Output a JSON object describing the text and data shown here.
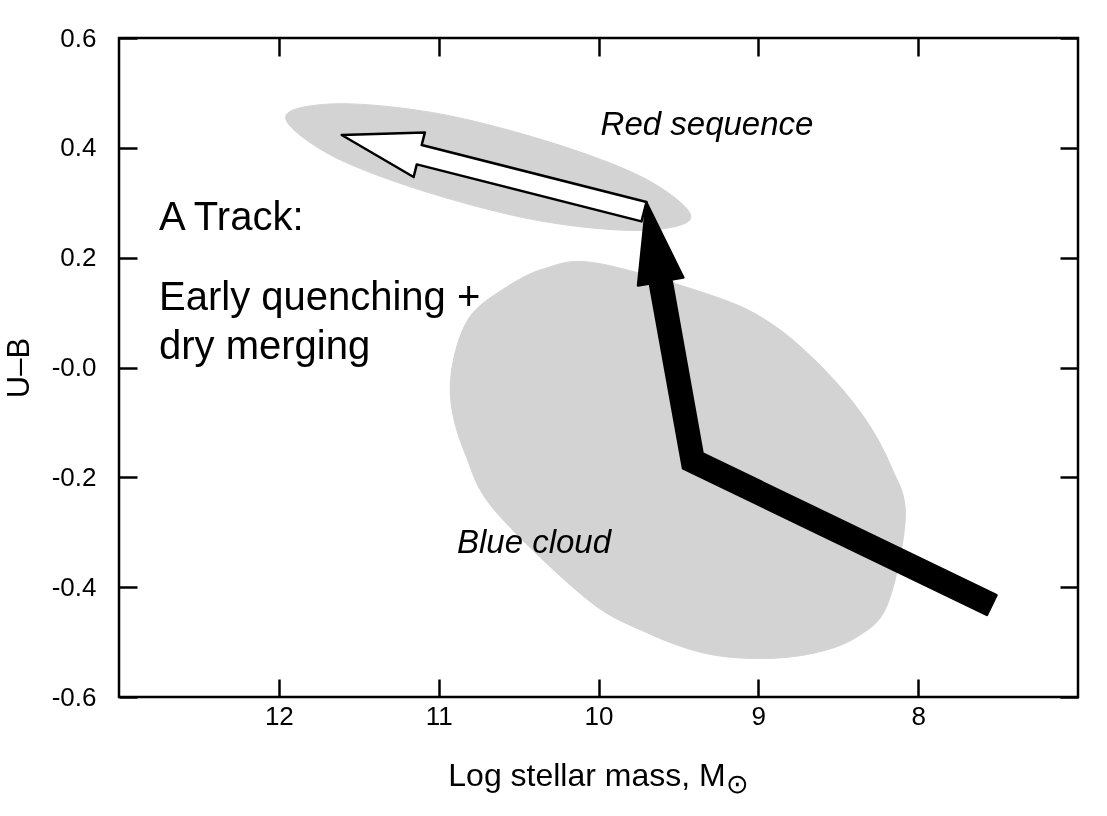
{
  "chart_data": {
    "type": "area",
    "xlabel": "Log stellar mass, M$_{⊙}$",
    "ylabel": "U–B",
    "xlim": [
      13,
      7
    ],
    "xticks": [
      12,
      11,
      10,
      9,
      8
    ],
    "ylim": [
      -0.6,
      0.6
    ],
    "yticks": [
      0.6,
      0.4,
      0.2,
      {
        "value": 0,
        "label": "-0.0"
      },
      -0.2,
      -0.4,
      -0.6
    ],
    "series": [
      {
        "name": "Red sequence",
        "color": "#d3d3d3",
        "x": [
          9.48,
          9.84,
          10.42,
          11.08,
          11.63,
          11.93,
          11.9,
          11.54,
          10.96,
          10.3,
          9.75,
          9.45
        ],
        "values": [
          0.26,
          0.25,
          0.27,
          0.32,
          0.38,
          0.44,
          0.47,
          0.48,
          0.46,
          0.41,
          0.35,
          0.29
        ]
      },
      {
        "name": "Blue cloud",
        "color": "#d3d3d3",
        "x": [
          8.19,
          8.38,
          8.65,
          8.98,
          9.34,
          9.72,
          10.08,
          10.65,
          10.83,
          10.92,
          10.91,
          10.81,
          10.61,
          10.34,
          10.01,
          9.28,
          8.92,
          8.6,
          8.34,
          8.17,
          8.08
        ],
        "values": [
          -0.43,
          -0.49,
          -0.52,
          -0.53,
          -0.52,
          -0.48,
          -0.42,
          -0.26,
          -0.16,
          -0.07,
          0.01,
          0.09,
          0.14,
          0.18,
          0.19,
          0.13,
          0.08,
          0,
          -0.09,
          -0.18,
          -0.27
        ]
      }
    ],
    "annotations": [
      "A Track:",
      "Early quenching + dry merging"
    ]
  }
}
